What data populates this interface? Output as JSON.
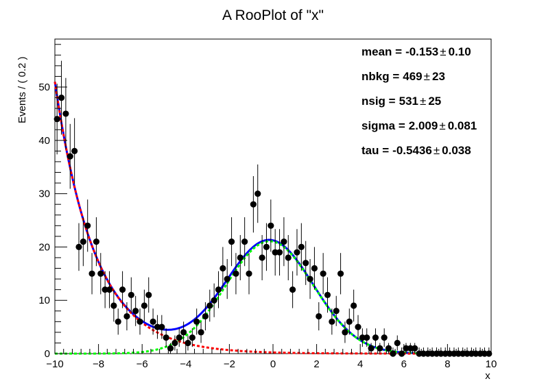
{
  "chart_data": {
    "type": "scatter",
    "title": "A RooPlot of \"x\"",
    "xlabel": "x",
    "ylabel": "Events / ( 0.2 )",
    "xlim": [
      -10,
      10
    ],
    "ylim": [
      0,
      59
    ],
    "x_ticks": [
      -10,
      -8,
      -6,
      -4,
      -2,
      0,
      2,
      4,
      6,
      8,
      10
    ],
    "y_ticks": [
      0,
      10,
      20,
      30,
      40,
      50
    ],
    "legend": "none",
    "grid": false,
    "parameters": [
      {
        "name": "mean =",
        "value": "-0.153",
        "error": "0.10"
      },
      {
        "name": "nbkg =",
        "value": "469",
        "error": "23"
      },
      {
        "name": "nsig =",
        "value": "531",
        "error": "25"
      },
      {
        "name": "sigma =",
        "value": "2.009",
        "error": "0.081"
      },
      {
        "name": "tau =",
        "value": "-0.5436",
        "error": "0.038"
      }
    ],
    "pm_symbol": "±",
    "bin_width": 0.2,
    "data_points": {
      "x": [
        -9.9,
        -9.7,
        -9.5,
        -9.3,
        -9.1,
        -8.9,
        -8.7,
        -8.5,
        -8.3,
        -8.1,
        -7.9,
        -7.7,
        -7.5,
        -7.3,
        -7.1,
        -6.9,
        -6.7,
        -6.5,
        -6.3,
        -6.1,
        -5.9,
        -5.7,
        -5.5,
        -5.3,
        -5.1,
        -4.9,
        -4.7,
        -4.5,
        -4.3,
        -4.1,
        -3.9,
        -3.7,
        -3.5,
        -3.3,
        -3.1,
        -2.9,
        -2.7,
        -2.5,
        -2.3,
        -2.1,
        -1.9,
        -1.7,
        -1.5,
        -1.3,
        -1.1,
        -0.9,
        -0.7,
        -0.5,
        -0.3,
        -0.1,
        0.1,
        0.3,
        0.5,
        0.7,
        0.9,
        1.1,
        1.3,
        1.5,
        1.7,
        1.9,
        2.1,
        2.3,
        2.5,
        2.7,
        2.9,
        3.1,
        3.3,
        3.5,
        3.7,
        3.9,
        4.1,
        4.3,
        4.5,
        4.7,
        4.9,
        5.1,
        5.3,
        5.5,
        5.7,
        5.9,
        6.1,
        6.3,
        6.5,
        6.7,
        6.9,
        7.1,
        7.3,
        7.5,
        7.7,
        7.9,
        8.1,
        8.3,
        8.5,
        8.7,
        8.9,
        9.1,
        9.3,
        9.5,
        9.7,
        9.9
      ],
      "y": [
        44,
        48,
        45,
        37,
        38,
        20,
        21,
        24,
        15,
        21,
        15,
        12,
        12,
        9,
        6,
        12,
        7,
        11,
        8,
        6,
        9,
        11,
        6,
        5,
        5,
        3,
        1,
        2,
        3,
        4,
        2,
        3,
        6,
        4,
        7,
        9,
        10,
        12,
        16,
        14,
        21,
        15,
        18,
        21,
        15,
        28,
        30,
        18,
        20,
        24,
        19,
        19,
        21,
        18,
        12,
        19,
        20,
        17,
        14,
        16,
        7,
        15,
        11,
        6,
        8,
        15,
        4,
        6,
        9,
        5,
        3,
        3,
        1,
        3,
        1,
        3,
        1,
        0,
        2,
        0,
        1,
        1,
        1,
        0,
        0,
        0,
        0,
        0,
        0,
        0,
        0,
        0,
        0,
        0,
        0,
        0,
        0,
        0,
        0,
        0
      ]
    },
    "curves": [
      {
        "id": "total",
        "color": "#0000ff",
        "style": "solid"
      },
      {
        "id": "signal",
        "color": "#00ff00",
        "style": "dashed"
      },
      {
        "id": "background",
        "color": "#ff0000",
        "style": "dashed"
      }
    ],
    "model": {
      "mean": -0.153,
      "sigma": 2.009,
      "tau": -0.5436,
      "nsig": 531,
      "nbkg": 469
    }
  }
}
